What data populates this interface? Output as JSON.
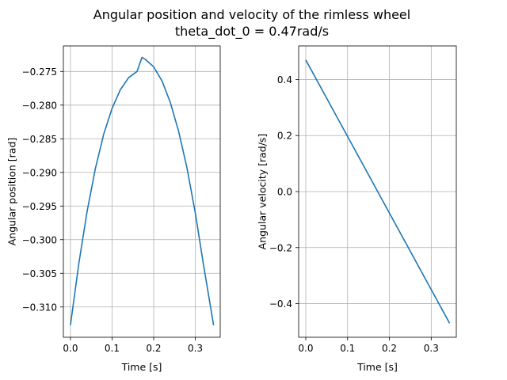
{
  "figure": {
    "title_line1": "Angular position and velocity of the rimless wheel",
    "title_line2": "theta_dot_0 = 0.47rad/s"
  },
  "colors": {
    "series": "#1f77b4",
    "grid": "#b0b0b0"
  },
  "chart_data": [
    {
      "type": "line",
      "xlabel": "Time [s]",
      "ylabel": "Angular position [rad]",
      "xlim": [
        -0.017,
        0.36
      ],
      "ylim": [
        -0.3145,
        -0.2712
      ],
      "xticks": [
        0.0,
        0.1,
        0.2,
        0.3
      ],
      "xtick_labels": [
        "0.0",
        "0.1",
        "0.2",
        "0.3"
      ],
      "yticks": [
        -0.31,
        -0.305,
        -0.3,
        -0.295,
        -0.29,
        -0.285,
        -0.28,
        -0.275
      ],
      "ytick_labels": [
        "−0.310",
        "−0.305",
        "−0.300",
        "−0.295",
        "−0.290",
        "−0.285",
        "−0.280",
        "−0.275"
      ],
      "grid": true,
      "series": [
        {
          "x": [
            0.0,
            0.02,
            0.04,
            0.06,
            0.08,
            0.1,
            0.12,
            0.14,
            0.16,
            0.172,
            0.18,
            0.2,
            0.22,
            0.24,
            0.26,
            0.28,
            0.3,
            0.32,
            0.344
          ],
          "y": [
            -0.3127,
            -0.3036,
            -0.2958,
            -0.2894,
            -0.2843,
            -0.2805,
            -0.2777,
            -0.2759,
            -0.275,
            -0.2729,
            -0.2732,
            -0.2743,
            -0.2764,
            -0.2796,
            -0.2839,
            -0.2893,
            -0.296,
            -0.3038,
            -0.3127
          ]
        }
      ]
    },
    {
      "type": "line",
      "xlabel": "Time [s]",
      "ylabel": "Angular velocity [rad/s]",
      "xlim": [
        -0.017,
        0.36
      ],
      "ylim": [
        -0.52,
        0.52
      ],
      "xticks": [
        0.0,
        0.1,
        0.2,
        0.3
      ],
      "xtick_labels": [
        "0.0",
        "0.1",
        "0.2",
        "0.3"
      ],
      "yticks": [
        -0.4,
        -0.2,
        0.0,
        0.2,
        0.4
      ],
      "ytick_labels": [
        "−0.4",
        "−0.2",
        "0.0",
        "0.2",
        "0.4"
      ],
      "grid": true,
      "series": [
        {
          "x": [
            0.0,
            0.344
          ],
          "y": [
            0.47,
            -0.47
          ]
        }
      ]
    }
  ]
}
